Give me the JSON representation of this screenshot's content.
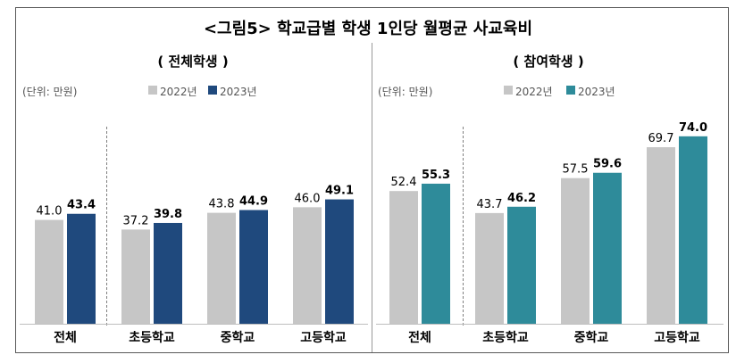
{
  "title": "<그림5> 학교급별 학생 1인당 월평균 사교육비",
  "colors": {
    "y2022": "#c6c6c6",
    "all_2023": "#1f497d",
    "part_2023": "#2e8b9a",
    "border": "#595959",
    "divider": "#999999",
    "text": "#000000",
    "muted": "#555555"
  },
  "chart_data": [
    {
      "type": "bar",
      "title": "( 전체학생 )",
      "unit_label": "(단위: 만원)",
      "categories": [
        "전체",
        "초등학교",
        "중학교",
        "고등학교"
      ],
      "series": [
        {
          "name": "2022년",
          "values": [
            41.0,
            37.2,
            43.8,
            46.0
          ]
        },
        {
          "name": "2023년",
          "values": [
            43.4,
            39.8,
            44.9,
            49.1
          ]
        }
      ],
      "value_labels": {
        "2022년": [
          "41.0",
          "37.2",
          "43.8",
          "46.0"
        ],
        "2023년": [
          "43.4",
          "39.8",
          "44.9",
          "49.1"
        ]
      },
      "ylim": [
        0,
        80
      ],
      "grid": false,
      "legend": "top"
    },
    {
      "type": "bar",
      "title": "( 참여학생 )",
      "unit_label": "(단위: 만원)",
      "categories": [
        "전체",
        "초등학교",
        "중학교",
        "고등학교"
      ],
      "series": [
        {
          "name": "2022년",
          "values": [
            52.4,
            43.7,
            57.5,
            69.7
          ]
        },
        {
          "name": "2023년",
          "values": [
            55.3,
            46.2,
            59.6,
            74.0
          ]
        }
      ],
      "value_labels": {
        "2022년": [
          "52.4",
          "43.7",
          "57.5",
          "69.7"
        ],
        "2023년": [
          "55.3",
          "46.2",
          "59.6",
          "74.0"
        ]
      },
      "ylim": [
        0,
        80
      ],
      "grid": false,
      "legend": "top"
    }
  ]
}
